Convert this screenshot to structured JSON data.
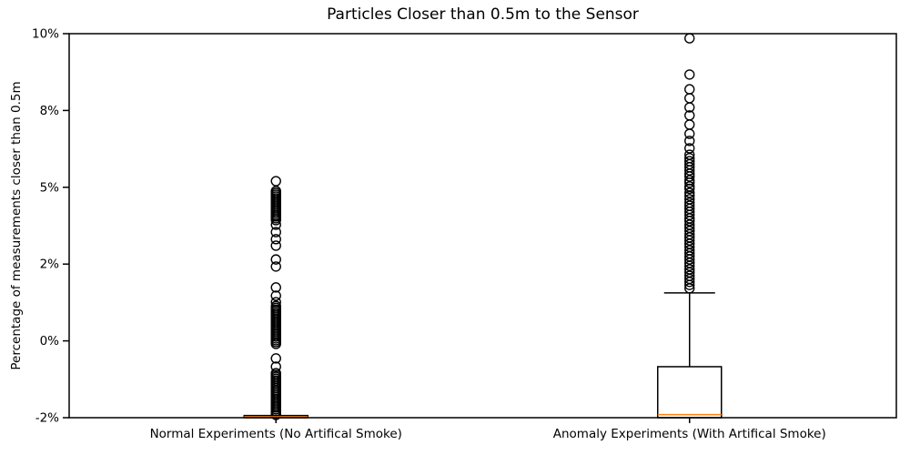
{
  "chart_data": {
    "type": "boxplot",
    "title": "Particles Closer than 0.5m to the Sensor",
    "ylabel": "Percentage of measurements closer than 0.5m",
    "xlabel": "",
    "ylim": [
      -2.5,
      10
    ],
    "yticks": {
      "values": [
        -2.5,
        0,
        2.5,
        5,
        7.5,
        10
      ],
      "labels": [
        "-2%",
        "0%",
        "2%",
        "5%",
        "8%",
        "10%"
      ]
    },
    "grid": false,
    "legend": false,
    "colors": {
      "box": "#000000",
      "median": "#ff7f0e",
      "outlier": "#000000",
      "background": "#ffffff"
    },
    "categories": [
      "Normal Experiments (No Artifical Smoke)",
      "Anomaly Experiments (With Artifical Smoke)"
    ],
    "series": [
      {
        "name": "Normal Experiments (No Artifical Smoke)",
        "q1": -2.5,
        "median": -2.47,
        "q3": -2.43,
        "whisker_low": -2.5,
        "whisker_high": -2.43,
        "outliers": [
          5.2,
          4.88,
          4.82,
          4.76,
          4.7,
          4.64,
          4.58,
          4.52,
          4.46,
          4.4,
          4.34,
          4.28,
          4.22,
          4.16,
          4.1,
          4.05,
          3.99,
          3.93,
          3.78,
          3.54,
          3.31,
          3.1,
          2.65,
          2.42,
          1.74,
          1.47,
          1.26,
          1.14,
          1.08,
          1.02,
          0.97,
          0.91,
          0.85,
          0.79,
          0.73,
          0.67,
          0.61,
          0.55,
          0.49,
          0.43,
          0.37,
          0.31,
          0.25,
          0.2,
          0.14,
          0.08,
          0.02,
          -0.04,
          -0.1,
          -0.57,
          -0.84,
          -1.05,
          -1.11,
          -1.17,
          -1.23,
          -1.29,
          -1.35,
          -1.41,
          -1.47,
          -1.53,
          -1.59,
          -1.64,
          -1.7,
          -1.76,
          -1.82,
          -1.88,
          -1.94,
          -2.0,
          -2.06,
          -2.12,
          -2.17,
          -2.23,
          -2.29,
          -2.35,
          -2.41
        ]
      },
      {
        "name": "Anomaly Experiments (With Artifical Smoke)",
        "q1": -2.5,
        "median": -2.4,
        "q3": -0.84,
        "whisker_low": -2.5,
        "whisker_high": 1.56,
        "outliers": [
          9.85,
          8.67,
          8.19,
          7.9,
          7.6,
          7.34,
          7.04,
          6.74,
          6.51,
          6.27,
          6.06,
          5.95,
          5.85,
          5.75,
          5.65,
          5.55,
          5.44,
          5.35,
          5.23,
          5.15,
          5.03,
          4.95,
          4.82,
          4.72,
          4.61,
          4.5,
          4.4,
          4.3,
          4.2,
          4.1,
          3.99,
          3.9,
          3.78,
          3.68,
          3.58,
          3.47,
          3.37,
          3.27,
          3.16,
          3.06,
          2.95,
          2.85,
          2.75,
          2.65,
          2.54,
          2.44,
          2.33,
          2.23,
          2.12,
          2.02,
          1.92,
          1.82,
          1.71
        ]
      }
    ]
  }
}
